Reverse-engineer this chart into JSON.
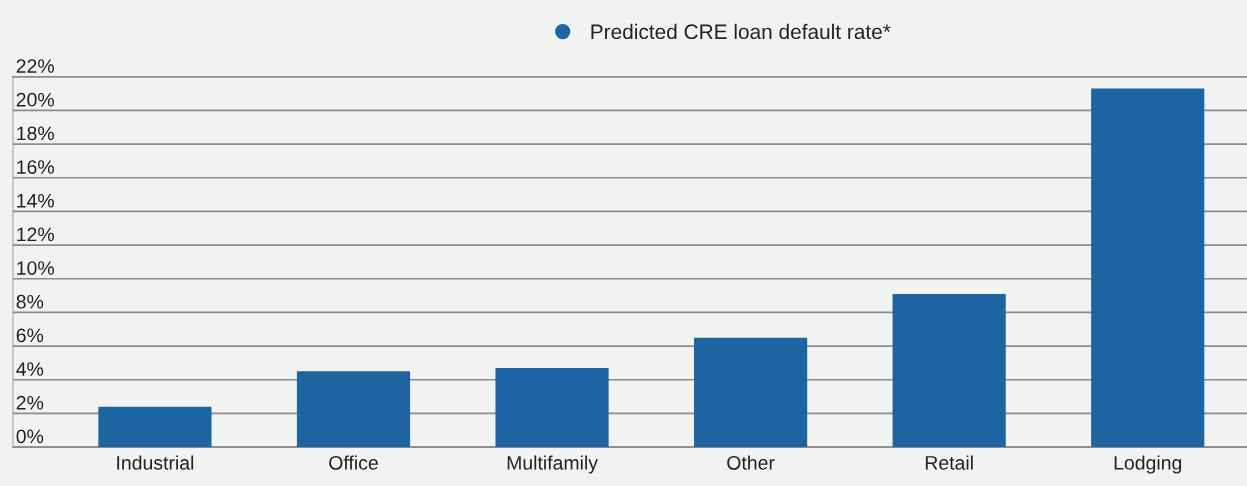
{
  "chart_data": {
    "type": "bar",
    "categories": [
      "Industrial",
      "Office",
      "Multifamily",
      "Other",
      "Retail",
      "Lodging"
    ],
    "series": [
      {
        "name": "Predicted CRE loan default rate*",
        "color": "#1c65a0",
        "values": [
          2.4,
          4.5,
          4.7,
          6.5,
          9.1,
          21.3
        ]
      }
    ],
    "ylim": [
      0,
      22
    ],
    "yticks": [
      {
        "value": 0,
        "label": "0%"
      },
      {
        "value": 2,
        "label": "2%"
      },
      {
        "value": 4,
        "label": "4%"
      },
      {
        "value": 6,
        "label": "6%"
      },
      {
        "value": 8,
        "label": "8%"
      },
      {
        "value": 10,
        "label": "10%"
      },
      {
        "value": 12,
        "label": "12%"
      },
      {
        "value": 14,
        "label": "14%"
      },
      {
        "value": 16,
        "label": "16%"
      },
      {
        "value": 18,
        "label": "18%"
      },
      {
        "value": 20,
        "label": "20%"
      },
      {
        "value": 22,
        "label": "22%"
      }
    ],
    "grid": "y",
    "legend": "top",
    "marker": "circle"
  }
}
